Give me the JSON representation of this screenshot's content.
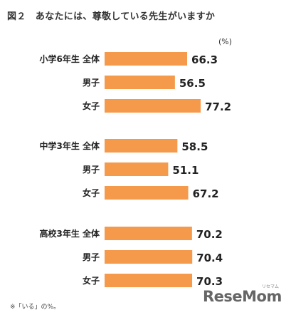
{
  "title": "図２　あなたには、尊敬している先生がいますか",
  "unit": "(%)",
  "footnote": "※「いる」の%。",
  "brand": {
    "name": "ReseMom",
    "sub": "リセマム"
  },
  "colors": {
    "bar": "#F59A4B"
  },
  "chart_data": {
    "type": "bar",
    "orientation": "horizontal",
    "xlim": [
      0,
      100
    ],
    "grid": false,
    "groups": [
      {
        "name": "小学6年生",
        "items": [
          {
            "label": "全体",
            "value": 66.3
          },
          {
            "label": "男子",
            "value": 56.5
          },
          {
            "label": "女子",
            "value": 77.2
          }
        ]
      },
      {
        "name": "中学3年生",
        "items": [
          {
            "label": "全体",
            "value": 58.5
          },
          {
            "label": "男子",
            "value": 51.1
          },
          {
            "label": "女子",
            "value": 67.2
          }
        ]
      },
      {
        "name": "高校3年生",
        "items": [
          {
            "label": "全体",
            "value": 70.2
          },
          {
            "label": "男子",
            "value": 70.4
          },
          {
            "label": "女子",
            "value": 70.3
          }
        ]
      }
    ]
  }
}
